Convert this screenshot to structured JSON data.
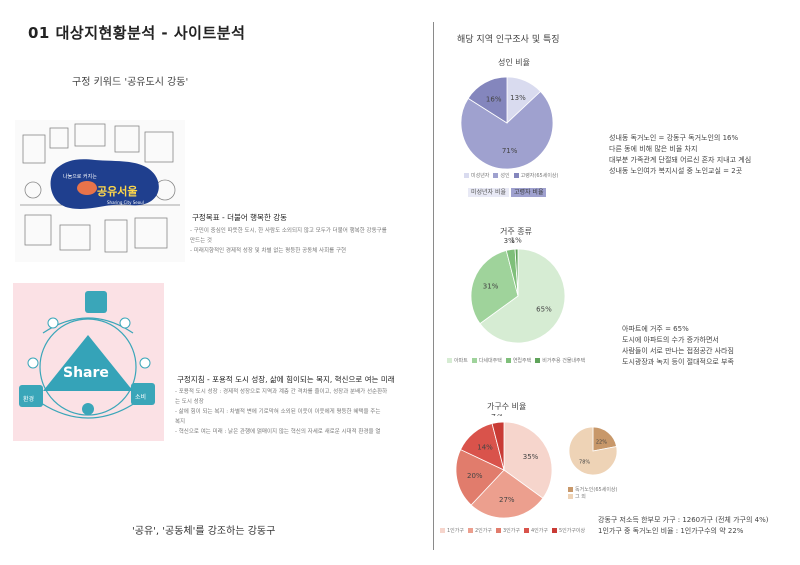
{
  "page": {
    "title": "01  대상지현황분석 - 사이트분석",
    "keyword": "구정 키워드 '공유도시 강동'",
    "bottom_caption": "'공유', '공동체'를 강조하는 강동구"
  },
  "goal": {
    "title": "구정목표 - 더불어 행복한 강동",
    "lines": [
      "- 구민이 중심인 따뜻한 도시, 한 사람도 소외되지 않고 모두가 더불어 행복한 강동구를",
      "  만드는 것",
      "- 미래지향적인 경제적 성장 및 차별 없는 평등한 공동체 사회를 구현"
    ]
  },
  "policy": {
    "title": "구정지침 - 포용적 도시 성장, 삶에 힘이되는 복지, 혁신으로 여는 미래",
    "lines": [
      "- 포용적 도시 성장 : 경제적 성장으로 지역과 계층 간 격차를 줄이고, 성장과 분배가 선순환하",
      "  는 도시 성장",
      "- 삶에 힘이 되는 복지 : 차별적 변에 기로막혀 소외된 이웃이 이웃에게 평등한 혜택을 주는",
      "  복지",
      "- 혁신으로 여는 미래 : 낡은 관행에 얽매이지 않는 혁신의 자세로 새로운 시대적 환경을 열"
    ]
  },
  "images": {
    "seoul_logo_text": "나눔으로 커지는",
    "seoul_logo_main": "공유서울",
    "seoul_logo_sub": "Sharing City Seoul",
    "share_word": "Share",
    "share_badge_left": "환경",
    "share_badge_right": "소비"
  },
  "right": {
    "title": "해당 지역 인구조사 및 특징",
    "note1": [
      "성내동 독거노인 = 강동구 독거노인의 16%",
      "다른 동에 비해 많은 비율 차지",
      "대부분 가족관계 단절돼 어르신 혼자 지내고 계심",
      "성내동 노인여가 복지시설 중 노인교실 = 2곳"
    ],
    "note2": [
      "아파트에 거주 = 65%",
      "도시에 아파트의 수가 증가하면서",
      "사람들이 서로 만나는 접점공간 사라짐",
      "도시광장과 녹지 등이 절대적으로 부족"
    ],
    "note3": [
      "강동구 저소득 한부모 가구 :  1260가구 (전체 가구의 4%)",
      "1인가구 중 독거노인 비율 : 1인가구수의 약 22%"
    ]
  },
  "chart_data": [
    {
      "type": "pie",
      "title": "성인 비율",
      "labels": [
        "미성년자",
        "성인",
        "고령자(65세이상)"
      ],
      "values": [
        13,
        71,
        16
      ],
      "colors": [
        "#d9dbef",
        "#9fa1cf",
        "#8486bd"
      ],
      "legend": [
        "미성년자",
        "성인",
        "고령자(65세이상)"
      ],
      "tags": [
        "미성년자 비율",
        "고령자 비율"
      ]
    },
    {
      "type": "pie",
      "title": "거주 종류",
      "labels": [
        "아파트",
        "다세대주택",
        "연립주택",
        "비거주용 건물내주택"
      ],
      "values": [
        65,
        31,
        3,
        1
      ],
      "colors": [
        "#d6ecd3",
        "#9fd39b",
        "#7fbf7a",
        "#5fa35a"
      ],
      "legend": [
        "아파트",
        "다세대주택",
        "연립주택",
        "비거주용 건물내주택"
      ]
    },
    {
      "type": "pie",
      "title": "가구수 비율",
      "labels": [
        "1인가구",
        "2인가구",
        "3인가구",
        "4인가구",
        "5인가구이상"
      ],
      "values": [
        35,
        27,
        20,
        14,
        4
      ],
      "colors": [
        "#f6d5cc",
        "#ec9f8e",
        "#e17c6c",
        "#d9534b",
        "#c93b35"
      ],
      "legend": [
        "1인가구",
        "2인가구",
        "3인가구",
        "4인가구",
        "5인가구이상"
      ]
    },
    {
      "type": "pie",
      "title": "",
      "labels": [
        "독거노인(65세이상)",
        "그 외"
      ],
      "values": [
        22,
        78
      ],
      "colors": [
        "#c8986a",
        "#eed3b6"
      ],
      "legend": [
        "독거노인(65세이상)",
        "그 외"
      ]
    }
  ]
}
